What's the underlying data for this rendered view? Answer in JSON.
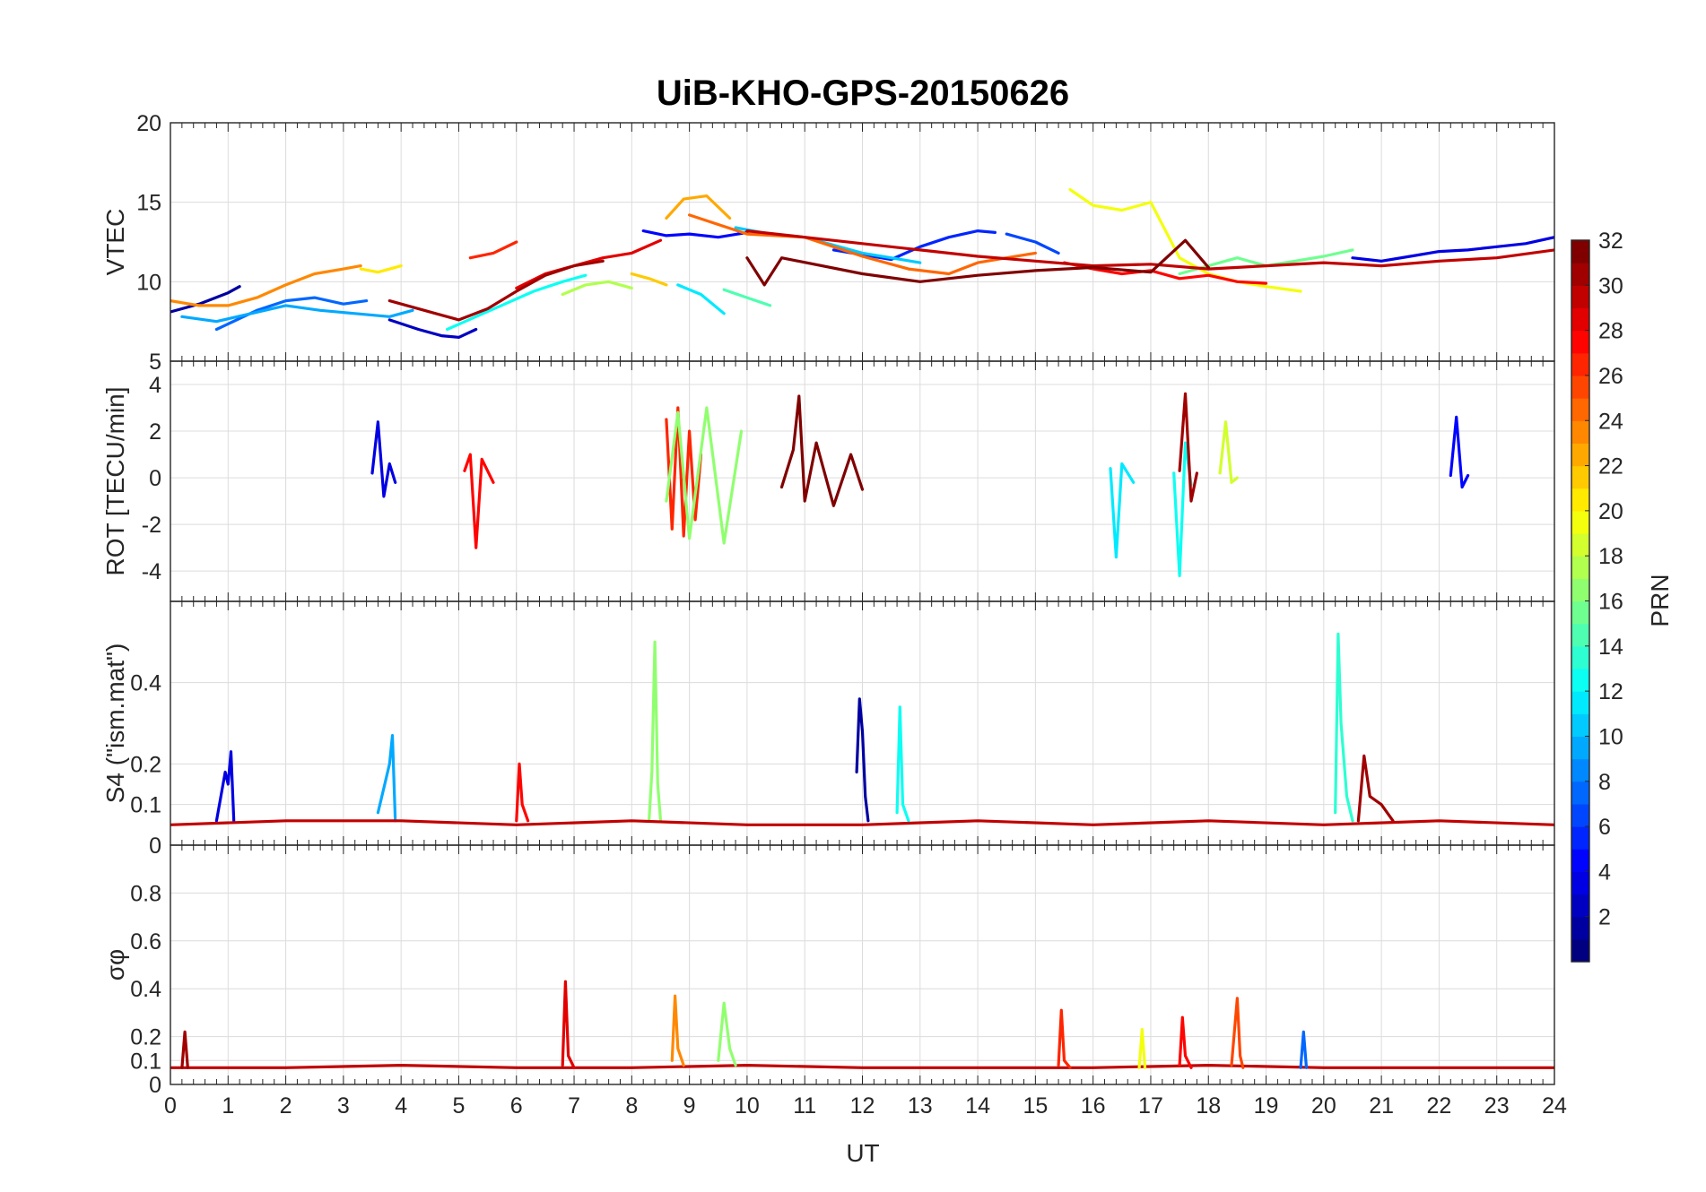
{
  "figure": {
    "title": "UiB-KHO-GPS-20150626",
    "xlabel": "UT"
  },
  "chart_data": [
    {
      "panel": "VTEC",
      "type": "line",
      "ylabel": "VTEC",
      "xlim": [
        0,
        24
      ],
      "ylim": [
        5,
        20
      ],
      "yticks": [
        5,
        10,
        15,
        20
      ],
      "grid": true,
      "series_by_prn": true,
      "series": [
        {
          "prn": 2,
          "x": [
            0,
            0.5,
            1.0,
            1.2
          ],
          "y": [
            8.1,
            8.6,
            9.3,
            9.7
          ]
        },
        {
          "prn": 3,
          "x": [
            3.8,
            4.3,
            4.7,
            5.0,
            5.3
          ],
          "y": [
            7.6,
            7.0,
            6.6,
            6.5,
            7.0
          ]
        },
        {
          "prn": 5,
          "x": [
            8.2,
            8.6,
            9.0,
            9.5,
            10.0
          ],
          "y": [
            13.2,
            12.9,
            13.0,
            12.8,
            13.1
          ]
        },
        {
          "prn": 6,
          "x": [
            11.5,
            12.5,
            13.0,
            13.5,
            14.0,
            14.3
          ],
          "y": [
            12.0,
            11.4,
            12.2,
            12.8,
            13.2,
            13.1
          ]
        },
        {
          "prn": 7,
          "x": [
            14.5,
            15.0,
            15.4
          ],
          "y": [
            13.0,
            12.5,
            11.8
          ]
        },
        {
          "prn": 4,
          "x": [
            20.5,
            21.0,
            21.5,
            22.0,
            22.5,
            23.0,
            23.5,
            24.0
          ],
          "y": [
            11.5,
            11.3,
            11.6,
            11.9,
            12.0,
            12.2,
            12.4,
            12.8
          ]
        },
        {
          "prn": 8,
          "x": [
            0.8,
            1.5,
            2.0,
            2.5,
            3.0,
            3.4
          ],
          "y": [
            7.0,
            8.2,
            8.8,
            9.0,
            8.6,
            8.8
          ]
        },
        {
          "prn": 10,
          "x": [
            0.2,
            0.8,
            1.4,
            2.0,
            2.6,
            3.2,
            3.8,
            4.2
          ],
          "y": [
            7.8,
            7.5,
            8.0,
            8.5,
            8.2,
            8.0,
            7.8,
            8.2
          ]
        },
        {
          "prn": 11,
          "x": [
            9.8,
            10.4,
            11.0,
            11.5,
            12.0,
            12.5,
            13.0
          ],
          "y": [
            13.4,
            13.0,
            12.8,
            12.3,
            11.8,
            11.5,
            11.2
          ]
        },
        {
          "prn": 12,
          "x": [
            8.8,
            9.2,
            9.6
          ],
          "y": [
            9.8,
            9.2,
            8.0
          ]
        },
        {
          "prn": 13,
          "x": [
            4.8,
            5.3,
            5.8,
            6.3,
            6.8,
            7.2
          ],
          "y": [
            7.0,
            7.8,
            8.6,
            9.4,
            10.0,
            10.4
          ]
        },
        {
          "prn": 15,
          "x": [
            9.6,
            10.0,
            10.4
          ],
          "y": [
            9.5,
            9.0,
            8.5
          ]
        },
        {
          "prn": 16,
          "x": [
            17.5,
            18.0,
            18.5,
            19.0,
            19.5,
            20.0,
            20.5
          ],
          "y": [
            10.5,
            11.0,
            11.5,
            11.0,
            11.3,
            11.6,
            12.0
          ]
        },
        {
          "prn": 18,
          "x": [
            6.8,
            7.2,
            7.6,
            8.0
          ],
          "y": [
            9.2,
            9.8,
            10.0,
            9.6
          ]
        },
        {
          "prn": 20,
          "x": [
            15.6,
            16.0,
            16.5,
            17.0,
            17.5,
            18.0,
            18.5,
            19.0,
            19.6
          ],
          "y": [
            15.8,
            14.8,
            14.5,
            15.0,
            11.5,
            10.5,
            10.0,
            9.7,
            9.4
          ]
        },
        {
          "prn": 21,
          "x": [
            3.3,
            3.6,
            4.0
          ],
          "y": [
            10.8,
            10.6,
            11.0
          ]
        },
        {
          "prn": 22,
          "x": [
            8.0,
            8.3,
            8.6
          ],
          "y": [
            10.5,
            10.2,
            9.8
          ]
        },
        {
          "prn": 23,
          "x": [
            8.6,
            8.9,
            9.3,
            9.7
          ],
          "y": [
            14.0,
            15.2,
            15.4,
            14.0
          ]
        },
        {
          "prn": 24,
          "x": [
            0,
            0.5,
            1.0,
            1.5,
            2.0,
            2.5,
            3.0,
            3.3
          ],
          "y": [
            8.8,
            8.5,
            8.5,
            9.0,
            9.8,
            10.5,
            10.8,
            11.0
          ]
        },
        {
          "prn": 25,
          "x": [
            9.0,
            10.0,
            11.0,
            12.0,
            12.8,
            13.5,
            14.0,
            14.5,
            15.0
          ],
          "y": [
            14.2,
            13.0,
            12.8,
            11.6,
            10.8,
            10.5,
            11.2,
            11.5,
            11.8
          ]
        },
        {
          "prn": 27,
          "x": [
            5.2,
            5.6,
            6.0
          ],
          "y": [
            11.5,
            11.8,
            12.5
          ]
        },
        {
          "prn": 28,
          "x": [
            15.5,
            16.0,
            16.5,
            17.0,
            17.5,
            18.0,
            18.5,
            19.0
          ],
          "y": [
            11.2,
            10.8,
            10.5,
            10.7,
            10.2,
            10.4,
            10.0,
            9.9
          ]
        },
        {
          "prn": 29,
          "x": [
            6.0,
            6.5,
            7.0,
            7.5,
            8.0,
            8.5
          ],
          "y": [
            9.6,
            10.5,
            11.0,
            11.5,
            11.8,
            12.6
          ]
        },
        {
          "prn": 30,
          "x": [
            10.0,
            11.0,
            12.0,
            13.0,
            14.0,
            15.0,
            16.0,
            17.0,
            18.0,
            19.0,
            20.0,
            21.0,
            22.0,
            23.0,
            24.0
          ],
          "y": [
            13.2,
            12.8,
            12.4,
            12.0,
            11.6,
            11.3,
            11.0,
            11.1,
            10.8,
            11.0,
            11.2,
            11.0,
            11.3,
            11.5,
            12.0
          ]
        },
        {
          "prn": 31,
          "x": [
            3.8,
            4.2,
            4.6,
            5.0,
            5.5,
            6.0,
            6.5,
            7.0,
            7.5
          ],
          "y": [
            8.8,
            8.4,
            8.0,
            7.6,
            8.3,
            9.4,
            10.4,
            11.0,
            11.3
          ]
        },
        {
          "prn": 32,
          "x": [
            10.0,
            10.3,
            10.6,
            12.0,
            13.0,
            14.0,
            15.0,
            16.0,
            17.0,
            17.6,
            18.0
          ],
          "y": [
            11.5,
            9.8,
            11.5,
            10.5,
            10.0,
            10.4,
            10.7,
            10.9,
            10.6,
            12.6,
            10.9
          ]
        }
      ]
    },
    {
      "panel": "ROT",
      "type": "line",
      "ylabel": "ROT [TECU/min]",
      "xlim": [
        0,
        24
      ],
      "ylim": [
        -5.3,
        5
      ],
      "yticks": [
        -4,
        -2,
        0,
        2,
        4
      ],
      "grid": true,
      "series_by_prn": true,
      "series": [
        {
          "prn": 4,
          "x": [
            3.5,
            3.6,
            3.7,
            3.8,
            3.9
          ],
          "y": [
            0.2,
            2.4,
            -0.8,
            0.6,
            -0.2
          ]
        },
        {
          "prn": 32,
          "x": [
            10.6,
            10.8,
            10.9,
            11.0,
            11.2,
            11.5,
            11.8,
            12.0
          ],
          "y": [
            -0.4,
            1.2,
            3.5,
            -1.0,
            1.5,
            -1.2,
            1.0,
            -0.5
          ]
        },
        {
          "prn": 28,
          "x": [
            5.1,
            5.2,
            5.3,
            5.4,
            5.6
          ],
          "y": [
            0.3,
            1.0,
            -3.0,
            0.8,
            -0.2
          ]
        },
        {
          "prn": 27,
          "x": [
            8.6,
            8.7,
            8.8,
            8.9,
            9.0,
            9.1,
            9.2
          ],
          "y": [
            2.5,
            -2.2,
            3.0,
            -2.5,
            2.0,
            -1.8,
            1.0
          ]
        },
        {
          "prn": 17,
          "x": [
            8.6,
            8.8,
            9.0,
            9.3,
            9.6,
            9.9
          ],
          "y": [
            -1.0,
            2.8,
            -2.6,
            3.0,
            -2.8,
            2.0
          ]
        },
        {
          "prn": 12,
          "x": [
            16.3,
            16.4,
            16.5,
            16.7
          ],
          "y": [
            0.4,
            -3.4,
            0.6,
            -0.2
          ]
        },
        {
          "prn": 13,
          "x": [
            17.4,
            17.5,
            17.6,
            17.7
          ],
          "y": [
            0.2,
            -4.2,
            1.5,
            -0.3
          ]
        },
        {
          "prn": 31,
          "x": [
            17.5,
            17.6,
            17.7,
            17.8
          ],
          "y": [
            0.3,
            3.6,
            -1.0,
            0.2
          ]
        },
        {
          "prn": 5,
          "x": [
            22.2,
            22.3,
            22.4,
            22.5
          ],
          "y": [
            0.1,
            2.6,
            -0.4,
            0.1
          ]
        },
        {
          "prn": 19,
          "x": [
            18.2,
            18.3,
            18.4,
            18.5
          ],
          "y": [
            0.2,
            2.4,
            -0.2,
            0.0
          ]
        }
      ]
    },
    {
      "panel": "S4",
      "type": "line",
      "ylabel": "S4 (\"ism.mat\")",
      "xlim": [
        0,
        24
      ],
      "ylim": [
        0,
        0.6
      ],
      "yticks": [
        0,
        0.1,
        0.2,
        0.4
      ],
      "grid": true,
      "series_by_prn": true,
      "series": [
        {
          "prn": 4,
          "x": [
            0.8,
            0.95,
            1.0,
            1.05,
            1.1
          ],
          "y": [
            0.06,
            0.18,
            0.15,
            0.23,
            0.06
          ]
        },
        {
          "prn": 10,
          "x": [
            3.6,
            3.7,
            3.8,
            3.85,
            3.9
          ],
          "y": [
            0.08,
            0.14,
            0.2,
            0.27,
            0.06
          ]
        },
        {
          "prn": 17,
          "x": [
            8.3,
            8.35,
            8.4,
            8.45,
            8.5
          ],
          "y": [
            0.06,
            0.18,
            0.5,
            0.15,
            0.06
          ]
        },
        {
          "prn": 2,
          "x": [
            11.9,
            11.95,
            12.0,
            12.05,
            12.1
          ],
          "y": [
            0.18,
            0.36,
            0.28,
            0.12,
            0.06
          ]
        },
        {
          "prn": 13,
          "x": [
            12.6,
            12.65,
            12.7,
            12.8
          ],
          "y": [
            0.08,
            0.34,
            0.1,
            0.06
          ]
        },
        {
          "prn": 14,
          "x": [
            20.2,
            20.25,
            20.3,
            20.4,
            20.5
          ],
          "y": [
            0.08,
            0.52,
            0.3,
            0.12,
            0.06
          ]
        },
        {
          "prn": 28,
          "x": [
            6.0,
            6.05,
            6.1,
            6.2
          ],
          "y": [
            0.06,
            0.2,
            0.1,
            0.06
          ]
        },
        {
          "prn": 31,
          "x": [
            20.6,
            20.7,
            20.8,
            21.0,
            21.2
          ],
          "y": [
            0.06,
            0.22,
            0.12,
            0.1,
            0.06
          ]
        },
        {
          "prn": 30,
          "x": [
            0,
            2.0,
            4.0,
            6.0,
            8.0,
            10.0,
            12.0,
            14.0,
            16.0,
            18.0,
            20.0,
            22.0,
            24.0
          ],
          "y": [
            0.05,
            0.06,
            0.06,
            0.05,
            0.06,
            0.05,
            0.05,
            0.06,
            0.05,
            0.06,
            0.05,
            0.06,
            0.05
          ]
        }
      ]
    },
    {
      "panel": "sigma_phi",
      "type": "line",
      "ylabel": "σφ",
      "xlim": [
        0,
        24
      ],
      "ylim": [
        0,
        1
      ],
      "yticks": [
        0,
        0.1,
        0.2,
        0.4,
        0.6,
        0.8
      ],
      "grid": true,
      "series_by_prn": true,
      "series": [
        {
          "prn": 30,
          "x": [
            0,
            2.0,
            4.0,
            6.0,
            8.0,
            10.0,
            12.0,
            14.0,
            16.0,
            18.0,
            20.0,
            22.0,
            24.0
          ],
          "y": [
            0.07,
            0.07,
            0.08,
            0.07,
            0.07,
            0.08,
            0.07,
            0.07,
            0.07,
            0.08,
            0.07,
            0.07,
            0.07
          ]
        },
        {
          "prn": 29,
          "x": [
            6.8,
            6.85,
            6.9,
            7.0
          ],
          "y": [
            0.08,
            0.43,
            0.12,
            0.07
          ]
        },
        {
          "prn": 24,
          "x": [
            8.7,
            8.75,
            8.8,
            8.9
          ],
          "y": [
            0.1,
            0.37,
            0.15,
            0.08
          ]
        },
        {
          "prn": 17,
          "x": [
            9.5,
            9.6,
            9.7,
            9.8
          ],
          "y": [
            0.1,
            0.34,
            0.15,
            0.08
          ]
        },
        {
          "prn": 27,
          "x": [
            15.4,
            15.45,
            15.5,
            15.6
          ],
          "y": [
            0.08,
            0.31,
            0.1,
            0.07
          ]
        },
        {
          "prn": 28,
          "x": [
            17.5,
            17.55,
            17.6,
            17.7
          ],
          "y": [
            0.08,
            0.28,
            0.12,
            0.07
          ]
        },
        {
          "prn": 26,
          "x": [
            18.4,
            18.5,
            18.55,
            18.6
          ],
          "y": [
            0.08,
            0.36,
            0.12,
            0.07
          ]
        },
        {
          "prn": 31,
          "x": [
            0.2,
            0.25,
            0.3
          ],
          "y": [
            0.07,
            0.22,
            0.07
          ]
        },
        {
          "prn": 20,
          "x": [
            16.8,
            16.85,
            16.9
          ],
          "y": [
            0.07,
            0.23,
            0.07
          ]
        },
        {
          "prn": 8,
          "x": [
            19.6,
            19.65,
            19.7
          ],
          "y": [
            0.07,
            0.22,
            0.07
          ]
        }
      ]
    }
  ],
  "colorbar": {
    "label": "PRN",
    "range": [
      1,
      32
    ],
    "ticks": [
      2,
      4,
      6,
      8,
      10,
      12,
      14,
      16,
      18,
      20,
      22,
      24,
      26,
      28,
      30,
      32
    ],
    "colormap": "jet"
  },
  "xticks": [
    0,
    1,
    2,
    3,
    4,
    5,
    6,
    7,
    8,
    9,
    10,
    11,
    12,
    13,
    14,
    15,
    16,
    17,
    18,
    19,
    20,
    21,
    22,
    23,
    24
  ]
}
